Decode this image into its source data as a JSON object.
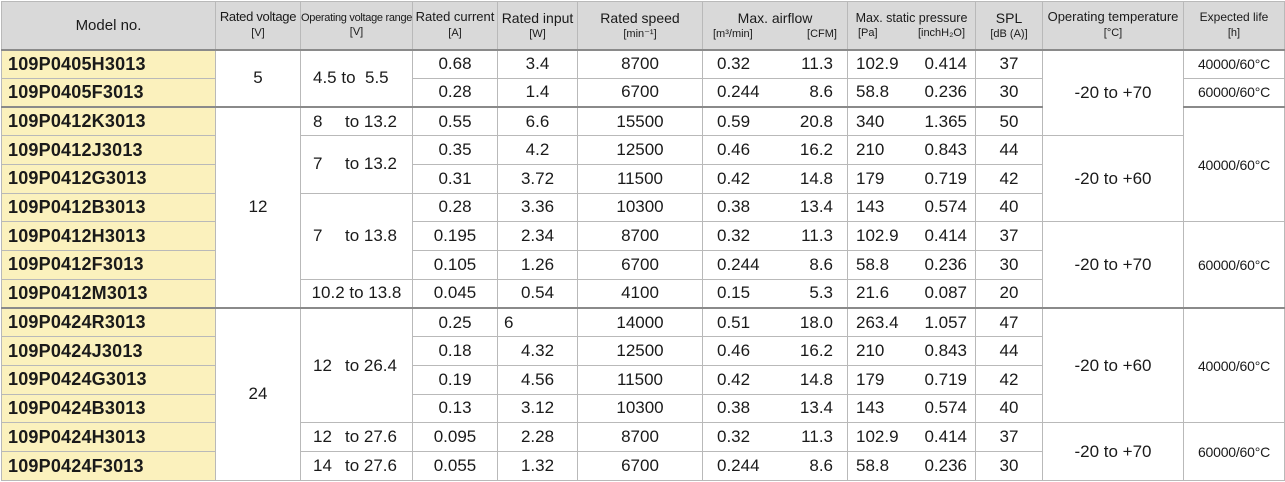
{
  "headers": {
    "model": "Model no.",
    "rated_voltage": {
      "label": "Rated voltage",
      "unit": "[V]"
    },
    "operating_voltage": {
      "label": "Operating voltage range",
      "unit": "[V]"
    },
    "rated_current": {
      "label": "Rated current",
      "unit": "[A]"
    },
    "rated_input": {
      "label": "Rated input",
      "unit": "[W]"
    },
    "rated_speed": {
      "label": "Rated speed",
      "unit": "[min⁻¹]"
    },
    "max_airflow": {
      "label": "Max. airflow",
      "unit1": "[m³/min]",
      "unit2": "[CFM]"
    },
    "max_static_pressure": {
      "label": "Max. static pressure",
      "unit1": "[Pa]",
      "unit2": "[inchH₂O]"
    },
    "spl": {
      "label": "SPL",
      "unit": "[dB (A)]"
    },
    "operating_temperature": {
      "label": "Operating temperature",
      "unit": "[°C]"
    },
    "expected_life": {
      "label": "Expected life",
      "unit": "[h]"
    }
  },
  "groups": {
    "rated_voltage": [
      "5",
      "12",
      "24"
    ],
    "operating_voltage": [
      {
        "from": "4.5 to",
        "to": "5.5"
      },
      {
        "from": "8",
        "to": "to 13.2"
      },
      {
        "from": "7",
        "to": "to 13.2"
      },
      {
        "from": "7",
        "to": "to 13.8"
      },
      {
        "from": "10.2 to 13.8",
        "to": ""
      },
      {
        "from": "12",
        "to": "to 26.4"
      },
      {
        "from": "12",
        "to": "to 27.6"
      },
      {
        "from": "14",
        "to": "to 27.6"
      }
    ],
    "operating_temperature": [
      "-20 to +70",
      "-20 to +60",
      "-20 to +70",
      "-20 to +60",
      "-20 to +70"
    ],
    "expected_life": [
      "40000/60°C",
      "60000/60°C",
      "40000/60°C",
      "60000/60°C",
      "40000/60°C",
      "60000/60°C"
    ]
  },
  "rows": [
    {
      "model": "109P0405H3013",
      "current": "0.68",
      "input": "3.4",
      "speed": "8700",
      "m3": "0.32",
      "cfm": "11.3",
      "pa": "102.9",
      "inch": "0.414",
      "spl": "37"
    },
    {
      "model": "109P0405F3013",
      "current": "0.28",
      "input": "1.4",
      "speed": "6700",
      "m3": "0.244",
      "cfm": "8.6",
      "pa": "58.8",
      "inch": "0.236",
      "spl": "30"
    },
    {
      "model": "109P0412K3013",
      "current": "0.55",
      "input": "6.6",
      "speed": "15500",
      "m3": "0.59",
      "cfm": "20.8",
      "pa": "340",
      "inch": "1.365",
      "spl": "50"
    },
    {
      "model": "109P0412J3013",
      "current": "0.35",
      "input": "4.2",
      "speed": "12500",
      "m3": "0.46",
      "cfm": "16.2",
      "pa": "210",
      "inch": "0.843",
      "spl": "44"
    },
    {
      "model": "109P0412G3013",
      "current": "0.31",
      "input": "3.72",
      "speed": "11500",
      "m3": "0.42",
      "cfm": "14.8",
      "pa": "179",
      "inch": "0.719",
      "spl": "42"
    },
    {
      "model": "109P0412B3013",
      "current": "0.28",
      "input": "3.36",
      "speed": "10300",
      "m3": "0.38",
      "cfm": "13.4",
      "pa": "143",
      "inch": "0.574",
      "spl": "40"
    },
    {
      "model": "109P0412H3013",
      "current": "0.195",
      "input": "2.34",
      "speed": "8700",
      "m3": "0.32",
      "cfm": "11.3",
      "pa": "102.9",
      "inch": "0.414",
      "spl": "37"
    },
    {
      "model": "109P0412F3013",
      "current": "0.105",
      "input": "1.26",
      "speed": "6700",
      "m3": "0.244",
      "cfm": "8.6",
      "pa": "58.8",
      "inch": "0.236",
      "spl": "30"
    },
    {
      "model": "109P0412M3013",
      "current": "0.045",
      "input": "0.54",
      "speed": "4100",
      "m3": "0.15",
      "cfm": "5.3",
      "pa": "21.6",
      "inch": "0.087",
      "spl": "20"
    },
    {
      "model": "109P0424R3013",
      "current": "0.25",
      "input": "6",
      "speed": "14000",
      "m3": "0.51",
      "cfm": "18.0",
      "pa": "263.4",
      "inch": "1.057",
      "spl": "47"
    },
    {
      "model": "109P0424J3013",
      "current": "0.18",
      "input": "4.32",
      "speed": "12500",
      "m3": "0.46",
      "cfm": "16.2",
      "pa": "210",
      "inch": "0.843",
      "spl": "44"
    },
    {
      "model": "109P0424G3013",
      "current": "0.19",
      "input": "4.56",
      "speed": "11500",
      "m3": "0.42",
      "cfm": "14.8",
      "pa": "179",
      "inch": "0.719",
      "spl": "42"
    },
    {
      "model": "109P0424B3013",
      "current": "0.13",
      "input": "3.12",
      "speed": "10300",
      "m3": "0.38",
      "cfm": "13.4",
      "pa": "143",
      "inch": "0.574",
      "spl": "40"
    },
    {
      "model": "109P0424H3013",
      "current": "0.095",
      "input": "2.28",
      "speed": "8700",
      "m3": "0.32",
      "cfm": "11.3",
      "pa": "102.9",
      "inch": "0.414",
      "spl": "37"
    },
    {
      "model": "109P0424F3013",
      "current": "0.055",
      "input": "1.32",
      "speed": "6700",
      "m3": "0.244",
      "cfm": "8.6",
      "pa": "58.8",
      "inch": "0.236",
      "spl": "30"
    }
  ]
}
